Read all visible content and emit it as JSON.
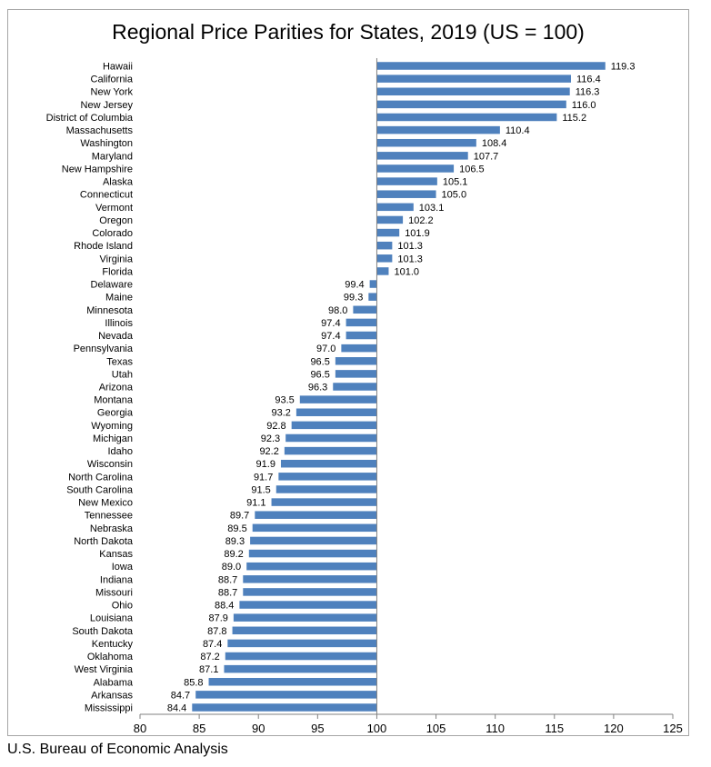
{
  "chart_data": {
    "type": "bar",
    "orientation": "horizontal",
    "title": "Regional Price Parities for States, 2019 (US = 100)",
    "xlabel": "",
    "ylabel": "",
    "baseline": 100,
    "xlim": [
      80,
      125
    ],
    "xticks": [
      80,
      85,
      90,
      95,
      100,
      105,
      110,
      115,
      120,
      125
    ],
    "grid": false,
    "bar_color": "#4f81bd",
    "categories": [
      "Hawaii",
      "California",
      "New York",
      "New Jersey",
      "District of Columbia",
      "Massachusetts",
      "Washington",
      "Maryland",
      "New Hampshire",
      "Alaska",
      "Connecticut",
      "Vermont",
      "Oregon",
      "Colorado",
      "Rhode Island",
      "Virginia",
      "Florida",
      "Delaware",
      "Maine",
      "Minnesota",
      "Illinois",
      "Nevada",
      "Pennsylvania",
      "Texas",
      "Utah",
      "Arizona",
      "Montana",
      "Georgia",
      "Wyoming",
      "Michigan",
      "Idaho",
      "Wisconsin",
      "North Carolina",
      "South Carolina",
      "New Mexico",
      "Tennessee",
      "Nebraska",
      "North Dakota",
      "Kansas",
      "Iowa",
      "Indiana",
      "Missouri",
      "Ohio",
      "Louisiana",
      "South Dakota",
      "Kentucky",
      "Oklahoma",
      "West Virginia",
      "Alabama",
      "Arkansas",
      "Mississippi"
    ],
    "values": [
      119.3,
      116.4,
      116.3,
      116.0,
      115.2,
      110.4,
      108.4,
      107.7,
      106.5,
      105.1,
      105.0,
      103.1,
      102.2,
      101.9,
      101.3,
      101.3,
      101.0,
      99.4,
      99.3,
      98.0,
      97.4,
      97.4,
      97.0,
      96.5,
      96.5,
      96.3,
      93.5,
      93.2,
      92.8,
      92.3,
      92.2,
      91.9,
      91.7,
      91.5,
      91.1,
      89.7,
      89.5,
      89.3,
      89.2,
      89.0,
      88.7,
      88.7,
      88.4,
      87.9,
      87.8,
      87.4,
      87.2,
      87.1,
      85.8,
      84.7,
      84.4
    ],
    "value_labels": [
      "119.3",
      "116.4",
      "116.3",
      "116.0",
      "115.2",
      "110.4",
      "108.4",
      "107.7",
      "106.5",
      "105.1",
      "105.0",
      "103.1",
      "102.2",
      "101.9",
      "101.3",
      "101.3",
      "101.0",
      "99.4",
      "99.3",
      "98.0",
      "97.4",
      "97.4",
      "97.0",
      "96.5",
      "96.5",
      "96.3",
      "93.5",
      "93.2",
      "92.8",
      "92.3",
      "92.2",
      "91.9",
      "91.7",
      "91.5",
      "91.1",
      "89.7",
      "89.5",
      "89.3",
      "89.2",
      "89.0",
      "88.7",
      "88.7",
      "88.4",
      "87.9",
      "87.8",
      "87.4",
      "87.2",
      "87.1",
      "85.8",
      "84.7",
      "84.4"
    ]
  },
  "footer": {
    "source": "U.S. Bureau of Economic Analysis"
  }
}
